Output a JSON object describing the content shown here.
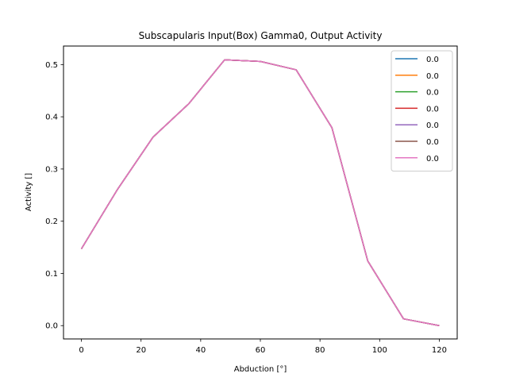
{
  "chart_data": {
    "type": "line",
    "title": "Subscapularis Input(Box) Gamma0, Output Activity",
    "xlabel": "Abduction [°]",
    "ylabel": "Activity []",
    "xlim": [
      -6,
      126
    ],
    "ylim": [
      -0.0255,
      0.5355
    ],
    "xticks": [
      0,
      20,
      40,
      60,
      80,
      100,
      120
    ],
    "yticks": [
      0.0,
      0.1,
      0.2,
      0.3,
      0.4,
      0.5
    ],
    "grid": false,
    "legend_position": "top-right",
    "x": [
      0,
      12,
      24,
      36,
      48,
      60,
      72,
      84,
      96,
      108,
      120
    ],
    "series": [
      {
        "name": "0.0",
        "color": "#1f77b4",
        "values": [
          0.147,
          0.26,
          0.361,
          0.425,
          0.509,
          0.506,
          0.49,
          0.379,
          0.124,
          0.013,
          0.0
        ]
      },
      {
        "name": "0.0",
        "color": "#ff7f0e",
        "values": [
          0.147,
          0.26,
          0.361,
          0.425,
          0.509,
          0.506,
          0.49,
          0.379,
          0.124,
          0.013,
          0.0
        ]
      },
      {
        "name": "0.0",
        "color": "#2ca02c",
        "values": [
          0.147,
          0.26,
          0.361,
          0.425,
          0.509,
          0.506,
          0.49,
          0.379,
          0.124,
          0.013,
          0.0
        ]
      },
      {
        "name": "0.0",
        "color": "#d62728",
        "values": [
          0.147,
          0.26,
          0.361,
          0.425,
          0.509,
          0.506,
          0.49,
          0.379,
          0.124,
          0.013,
          0.0
        ]
      },
      {
        "name": "0.0",
        "color": "#9467bd",
        "values": [
          0.147,
          0.26,
          0.361,
          0.425,
          0.509,
          0.506,
          0.49,
          0.379,
          0.124,
          0.013,
          0.0
        ]
      },
      {
        "name": "0.0",
        "color": "#8c564b",
        "values": [
          0.147,
          0.26,
          0.361,
          0.425,
          0.509,
          0.506,
          0.49,
          0.379,
          0.124,
          0.013,
          0.0
        ]
      },
      {
        "name": "0.0",
        "color": "#e377c2",
        "values": [
          0.147,
          0.26,
          0.361,
          0.425,
          0.509,
          0.506,
          0.49,
          0.379,
          0.124,
          0.013,
          0.0
        ]
      }
    ]
  }
}
